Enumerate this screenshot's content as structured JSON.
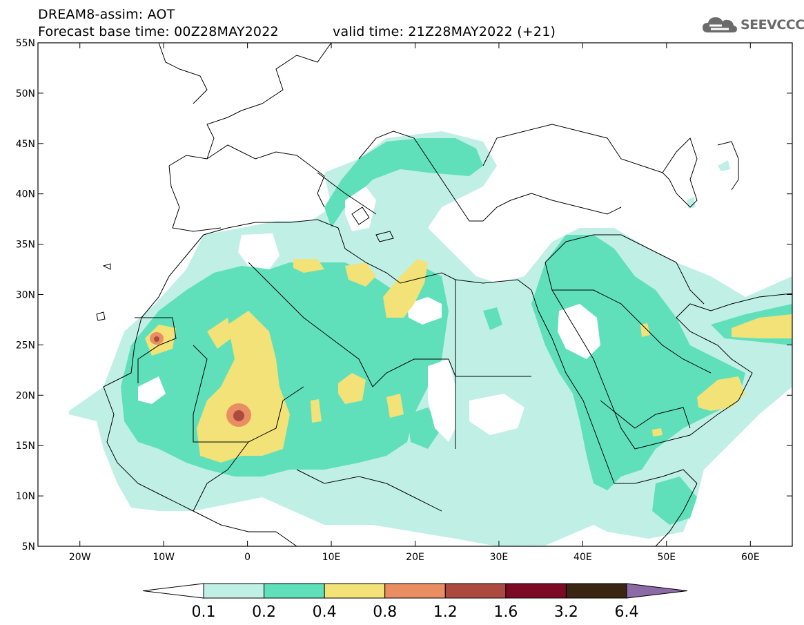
{
  "title": {
    "line1": "DREAM8-assim: AOT",
    "line2": "Forecast base time: 00Z28MAY2022",
    "line3": "valid time: 21Z28MAY2022 (+21)"
  },
  "logo": {
    "text": "SEEVCCC",
    "icon": "cloud-icon",
    "color": "#6b6b6b"
  },
  "map": {
    "lon_range": [
      -25,
      65
    ],
    "lat_range": [
      5,
      55
    ],
    "lat_ticks": [
      {
        "value": 55,
        "label": "55N"
      },
      {
        "value": 50,
        "label": "50N"
      },
      {
        "value": 45,
        "label": "45N"
      },
      {
        "value": 40,
        "label": "40N"
      },
      {
        "value": 35,
        "label": "35N"
      },
      {
        "value": 30,
        "label": "30N"
      },
      {
        "value": 25,
        "label": "25N"
      },
      {
        "value": 20,
        "label": "20N"
      },
      {
        "value": 15,
        "label": "15N"
      },
      {
        "value": 10,
        "label": "10N"
      },
      {
        "value": 5,
        "label": "5N"
      }
    ],
    "lon_ticks": [
      {
        "value": -20,
        "label": "20W"
      },
      {
        "value": -10,
        "label": "10W"
      },
      {
        "value": 0,
        "label": "0"
      },
      {
        "value": 10,
        "label": "10E"
      },
      {
        "value": 20,
        "label": "20E"
      },
      {
        "value": 30,
        "label": "30E"
      },
      {
        "value": 40,
        "label": "40E"
      },
      {
        "value": 50,
        "label": "50E"
      },
      {
        "value": 60,
        "label": "60E"
      }
    ]
  },
  "colorbar": {
    "levels": [
      "0.1",
      "0.2",
      "0.4",
      "0.8",
      "1.2",
      "1.6",
      "3.2",
      "6.4"
    ],
    "colors": [
      "#ffffff",
      "#c0efe6",
      "#5fe0bb",
      "#f2e277",
      "#e98d63",
      "#ac4a3f",
      "#7b0a24",
      "#3a2412",
      "#8c6aa6"
    ]
  }
}
